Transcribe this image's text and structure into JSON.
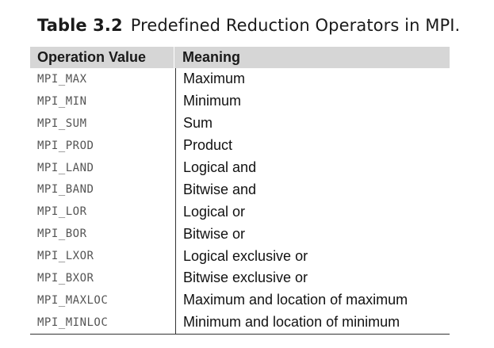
{
  "caption": {
    "number": "Table 3.2",
    "title": "Predefined Reduction Operators in MPI."
  },
  "table": {
    "headers": [
      "Operation Value",
      "Meaning"
    ],
    "rows": [
      {
        "op": "MPI_MAX",
        "meaning": "Maximum"
      },
      {
        "op": "MPI_MIN",
        "meaning": "Minimum"
      },
      {
        "op": "MPI_SUM",
        "meaning": "Sum"
      },
      {
        "op": "MPI_PROD",
        "meaning": "Product"
      },
      {
        "op": "MPI_LAND",
        "meaning": "Logical and"
      },
      {
        "op": "MPI_BAND",
        "meaning": "Bitwise and"
      },
      {
        "op": "MPI_LOR",
        "meaning": "Logical or"
      },
      {
        "op": "MPI_BOR",
        "meaning": "Bitwise or"
      },
      {
        "op": "MPI_LXOR",
        "meaning": "Logical exclusive or"
      },
      {
        "op": "MPI_BXOR",
        "meaning": "Bitwise exclusive or"
      },
      {
        "op": "MPI_MAXLOC",
        "meaning": "Maximum and location of maximum"
      },
      {
        "op": "MPI_MINLOC",
        "meaning": "Minimum and location of minimum"
      }
    ]
  }
}
